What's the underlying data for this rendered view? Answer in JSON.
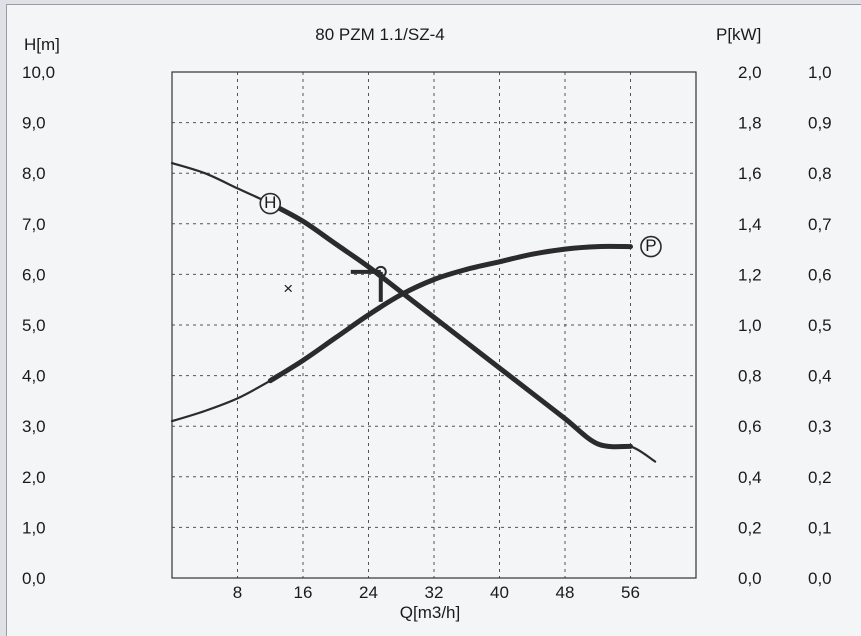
{
  "chart_data": {
    "type": "line",
    "title": "80 PZM 1.1/SZ-4",
    "xlabel": "Q[m3/h]",
    "ylabel_left": "H[m]",
    "ylabel_right": "P[kW]",
    "xlim": [
      0,
      64
    ],
    "ylim": [
      0,
      10
    ],
    "x_ticks": [
      "8",
      "16",
      "24",
      "32",
      "40",
      "48",
      "56"
    ],
    "y_ticks_left": [
      "0,0",
      "1,0",
      "2,0",
      "3,0",
      "4,0",
      "5,0",
      "6,0",
      "7,0",
      "8,0",
      "9,0",
      "10,0"
    ],
    "y_ticks_right_1": [
      "0,0",
      "0,2",
      "0,4",
      "0,6",
      "0,8",
      "1,0",
      "1,2",
      "1,4",
      "1,6",
      "1,8",
      "2,0"
    ],
    "y_ticks_right_2": [
      "0,0",
      "0,1",
      "0,2",
      "0,3",
      "0,4",
      "0,5",
      "0,6",
      "0,7",
      "0,8",
      "0,9",
      "1,0"
    ],
    "grid": true,
    "series": [
      {
        "name": "H",
        "axis": "left",
        "x": [
          0,
          4,
          8,
          12,
          16,
          20,
          24,
          28,
          32,
          36,
          40,
          44,
          48,
          52,
          56,
          59
        ],
        "y": [
          8.2,
          8.0,
          7.7,
          7.4,
          7.05,
          6.6,
          6.15,
          5.65,
          5.15,
          4.65,
          4.15,
          3.65,
          3.15,
          2.65,
          2.6,
          2.3
        ]
      },
      {
        "name": "P",
        "axis": "right",
        "x": [
          0,
          4,
          8,
          12,
          16,
          20,
          24,
          28,
          32,
          36,
          40,
          44,
          48,
          52,
          56
        ],
        "y": [
          0.62,
          0.66,
          0.71,
          0.78,
          0.86,
          0.95,
          1.04,
          1.12,
          1.18,
          1.22,
          1.25,
          1.28,
          1.3,
          1.31,
          1.31
        ]
      }
    ],
    "curve_labels": [
      "H",
      "P"
    ],
    "operating_point": {
      "x": 25.5,
      "y": 6.05
    },
    "annotation_mark": "×"
  }
}
